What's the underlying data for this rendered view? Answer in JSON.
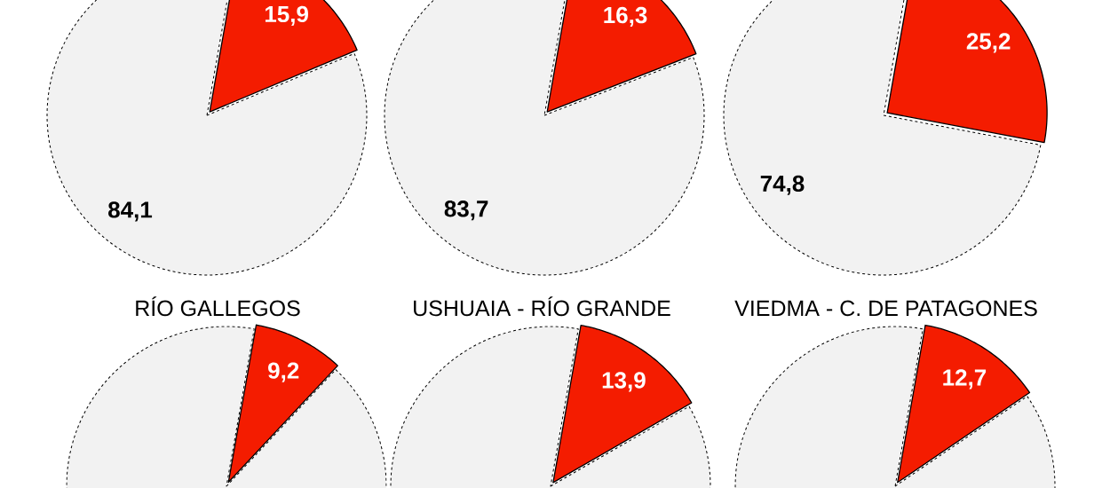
{
  "chart_data": [
    {
      "type": "pie",
      "categories": [
        null,
        null
      ],
      "values": [
        15.9,
        84.1
      ],
      "colors": [
        "#f41c00",
        "#f2f2f2"
      ],
      "value_labels": [
        "15,9",
        "84,1"
      ]
    },
    {
      "type": "pie",
      "categories": [
        null,
        null
      ],
      "values": [
        16.3,
        83.7
      ],
      "colors": [
        "#f41c00",
        "#f2f2f2"
      ],
      "value_labels": [
        "16,3",
        "83,7"
      ]
    },
    {
      "type": "pie",
      "categories": [
        null,
        null
      ],
      "values": [
        25.2,
        74.8
      ],
      "colors": [
        "#f41c00",
        "#f2f2f2"
      ],
      "value_labels": [
        "25,2",
        "74,8"
      ]
    },
    {
      "type": "pie",
      "title": "RÍO GALLEGOS",
      "categories": [
        null,
        null
      ],
      "values": [
        9.2,
        90.8
      ],
      "colors": [
        "#f41c00",
        "#f2f2f2"
      ],
      "value_labels": [
        "9,2",
        null
      ]
    },
    {
      "type": "pie",
      "title": "USHUAIA - RÍO GRANDE",
      "categories": [
        null,
        null
      ],
      "values": [
        13.9,
        86.1
      ],
      "colors": [
        "#f41c00",
        "#f2f2f2"
      ],
      "value_labels": [
        "13,9",
        null
      ]
    },
    {
      "type": "pie",
      "title": "VIEDMA - C. DE PATAGONES",
      "categories": [
        null,
        null
      ],
      "values": [
        12.7,
        87.3
      ],
      "colors": [
        "#f41c00",
        "#f2f2f2"
      ],
      "value_labels": [
        "12,7",
        null
      ]
    }
  ]
}
